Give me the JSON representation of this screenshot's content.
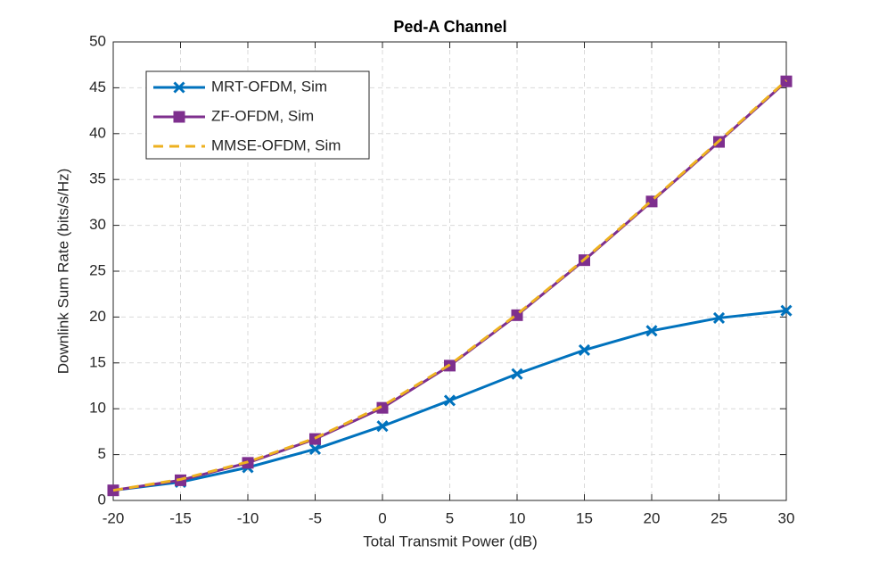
{
  "chart_data": {
    "type": "line",
    "title": "Ped-A Channel",
    "xlabel": "Total Transmit Power (dB)",
    "ylabel": "Downlink Sum Rate (bits/s/Hz)",
    "x": [
      -20,
      -15,
      -10,
      -5,
      0,
      5,
      10,
      15,
      20,
      25,
      30
    ],
    "xlim": [
      -20,
      30
    ],
    "xticks": [
      -20,
      -15,
      -10,
      -5,
      0,
      5,
      10,
      15,
      20,
      25,
      30
    ],
    "ylim": [
      0,
      50
    ],
    "yticks": [
      0,
      5,
      10,
      15,
      20,
      25,
      30,
      35,
      40,
      45,
      50
    ],
    "grid": true,
    "legend": "upper left",
    "series": [
      {
        "name": "MRT-OFDM, Sim",
        "color": "#0072bd",
        "marker": "x",
        "dash": false,
        "values": [
          1.1,
          2.0,
          3.6,
          5.6,
          8.1,
          10.9,
          13.8,
          16.4,
          18.5,
          19.9,
          20.7
        ]
      },
      {
        "name": "ZF-OFDM, Sim",
        "color": "#7e2f8e",
        "marker": "square",
        "dash": false,
        "values": [
          1.1,
          2.2,
          4.1,
          6.7,
          10.1,
          14.7,
          20.2,
          26.2,
          32.6,
          39.1,
          45.7
        ]
      },
      {
        "name": "MMSE-OFDM, Sim",
        "color": "#edb120",
        "marker": "none",
        "dash": true,
        "values": [
          1.1,
          2.3,
          4.2,
          6.8,
          10.3,
          14.8,
          20.3,
          26.3,
          32.7,
          39.2,
          45.8
        ]
      }
    ]
  }
}
